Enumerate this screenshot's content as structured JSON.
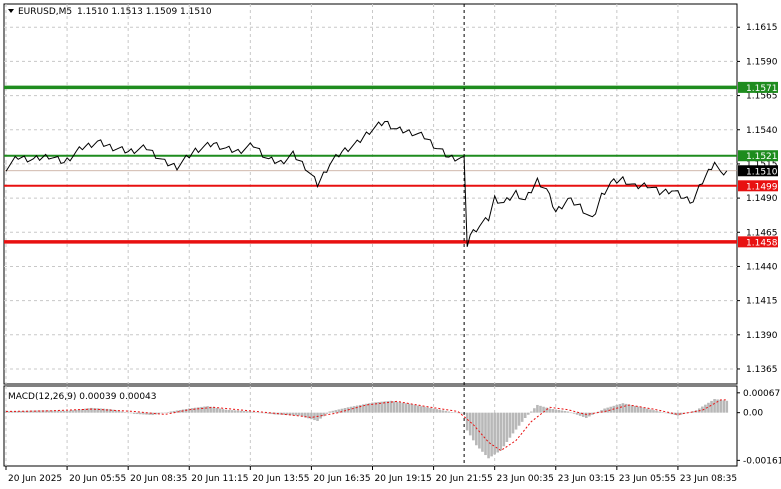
{
  "header": {
    "symbol": "EURUSD,M5",
    "ohlc": "1.1510 1.1513 1.1509 1.1510"
  },
  "macd_header": {
    "label": "MACD(12,26,9) 0.00039 0.00043"
  },
  "chart_data": {
    "type": "line",
    "price_axis": {
      "ylim": [
        1.1354,
        1.1632
      ],
      "ticks": [
        "1.1615",
        "1.1590",
        "1.1565",
        "1.1540",
        "1.1515",
        "1.1490",
        "1.1465",
        "1.1440",
        "1.1415",
        "1.1390",
        "1.1365"
      ]
    },
    "macd_axis": {
      "ylim": [
        -0.0018,
        0.0009
      ],
      "ticks": [
        "0.00067",
        "0.00",
        "-0.00161"
      ]
    },
    "time_axis": {
      "labels": [
        "20 Jun 2025",
        "20 Jun 05:55",
        "20 Jun 08:35",
        "20 Jun 11:15",
        "20 Jun 13:55",
        "20 Jun 16:35",
        "20 Jun 19:15",
        "20 Jun 21:55",
        "23 Jun 00:35",
        "23 Jun 03:15",
        "23 Jun 05:55",
        "23 Jun 08:35"
      ],
      "session_break_index": 150
    },
    "levels": [
      {
        "value": 1.1571,
        "label": "1.1571",
        "color": "#1e8c1e"
      },
      {
        "value": 1.1521,
        "label": "1.1521",
        "color": "#1e8c1e"
      },
      {
        "value": 1.1499,
        "label": "1.1499",
        "color": "#e81010"
      },
      {
        "value": 1.1458,
        "label": "1.1458",
        "color": "#e81010"
      }
    ],
    "current_price": {
      "value": 1.151,
      "label": "1.1510",
      "color": "#000000"
    },
    "price_series": {
      "anchors": [
        [
          0,
          1.1512
        ],
        [
          4,
          1.152
        ],
        [
          9,
          1.1518
        ],
        [
          14,
          1.1521
        ],
        [
          19,
          1.1516
        ],
        [
          25,
          1.1527
        ],
        [
          30,
          1.1531
        ],
        [
          35,
          1.1527
        ],
        [
          40,
          1.1524
        ],
        [
          46,
          1.1527
        ],
        [
          52,
          1.1516
        ],
        [
          56,
          1.1513
        ],
        [
          62,
          1.1525
        ],
        [
          68,
          1.153
        ],
        [
          72,
          1.1526
        ],
        [
          76,
          1.1524
        ],
        [
          81,
          1.1529
        ],
        [
          86,
          1.1518
        ],
        [
          90,
          1.1516
        ],
        [
          94,
          1.1522
        ],
        [
          98,
          1.1513
        ],
        [
          102,
          1.15
        ],
        [
          106,
          1.1515
        ],
        [
          110,
          1.1524
        ],
        [
          115,
          1.153
        ],
        [
          119,
          1.1539
        ],
        [
          124,
          1.1546
        ],
        [
          128,
          1.154
        ],
        [
          133,
          1.1538
        ],
        [
          137,
          1.1535
        ],
        [
          141,
          1.1527
        ],
        [
          145,
          1.152
        ],
        [
          149,
          1.1519
        ],
        [
          150,
          1.1518
        ],
        [
          151,
          1.1456
        ],
        [
          152,
          1.1463
        ],
        [
          155,
          1.147
        ],
        [
          158,
          1.1475
        ],
        [
          160,
          1.149
        ],
        [
          163,
          1.1486
        ],
        [
          167,
          1.1494
        ],
        [
          170,
          1.1488
        ],
        [
          174,
          1.1503
        ],
        [
          177,
          1.1496
        ],
        [
          180,
          1.148
        ],
        [
          184,
          1.1489
        ],
        [
          188,
          1.1484
        ],
        [
          192,
          1.1474
        ],
        [
          195,
          1.1492
        ],
        [
          198,
          1.1501
        ],
        [
          202,
          1.1504
        ],
        [
          206,
          1.1498
        ],
        [
          210,
          1.15
        ],
        [
          214,
          1.1494
        ],
        [
          218,
          1.1496
        ],
        [
          222,
          1.149
        ],
        [
          225,
          1.1488
        ],
        [
          228,
          1.1502
        ],
        [
          232,
          1.1517
        ],
        [
          234,
          1.1507
        ],
        [
          236,
          1.151
        ]
      ]
    },
    "macd_histogram": {
      "anchors": [
        [
          0,
          4e-05
        ],
        [
          12,
          8e-05
        ],
        [
          20,
          6e-05
        ],
        [
          28,
          0.00016
        ],
        [
          34,
          0.00012
        ],
        [
          42,
          -4e-05
        ],
        [
          48,
          -8e-05
        ],
        [
          54,
          4e-05
        ],
        [
          60,
          0.00014
        ],
        [
          66,
          0.00022
        ],
        [
          72,
          0.0001
        ],
        [
          80,
          4e-05
        ],
        [
          88,
          -6e-05
        ],
        [
          96,
          -0.0001
        ],
        [
          102,
          -0.00028
        ],
        [
          106,
          4e-05
        ],
        [
          112,
          0.00018
        ],
        [
          120,
          0.00034
        ],
        [
          126,
          0.0004
        ],
        [
          132,
          0.0003
        ],
        [
          140,
          0.00014
        ],
        [
          146,
          2e-05
        ],
        [
          150,
          -4e-05
        ],
        [
          151,
          -0.0006
        ],
        [
          154,
          -0.0011
        ],
        [
          158,
          -0.00154
        ],
        [
          162,
          -0.00128
        ],
        [
          166,
          -0.0007
        ],
        [
          170,
          -0.00018
        ],
        [
          174,
          0.00026
        ],
        [
          178,
          0.00014
        ],
        [
          184,
          4e-05
        ],
        [
          190,
          -0.00018
        ],
        [
          196,
          0.00014
        ],
        [
          202,
          0.00032
        ],
        [
          208,
          0.00018
        ],
        [
          214,
          4e-05
        ],
        [
          220,
          -0.0001
        ],
        [
          226,
          8e-05
        ],
        [
          232,
          0.00046
        ],
        [
          236,
          0.0004
        ]
      ]
    },
    "macd_signal": {
      "anchors": [
        [
          0,
          4e-05
        ],
        [
          14,
          6e-05
        ],
        [
          28,
          0.00012
        ],
        [
          42,
          4e-05
        ],
        [
          52,
          -6e-05
        ],
        [
          60,
          0.0001
        ],
        [
          68,
          0.00018
        ],
        [
          80,
          6e-05
        ],
        [
          90,
          -4e-05
        ],
        [
          100,
          -0.00016
        ],
        [
          108,
          -2e-05
        ],
        [
          118,
          0.00026
        ],
        [
          128,
          0.00038
        ],
        [
          138,
          0.0002
        ],
        [
          148,
          4e-05
        ],
        [
          153,
          -0.0004
        ],
        [
          158,
          -0.001
        ],
        [
          162,
          -0.00128
        ],
        [
          167,
          -0.00094
        ],
        [
          172,
          -0.0003
        ],
        [
          178,
          0.00018
        ],
        [
          184,
          0.0001
        ],
        [
          190,
          -6e-05
        ],
        [
          196,
          4e-05
        ],
        [
          204,
          0.00026
        ],
        [
          212,
          0.00012
        ],
        [
          220,
          -6e-05
        ],
        [
          228,
          8e-05
        ],
        [
          234,
          0.00043
        ],
        [
          236,
          0.00043
        ]
      ]
    },
    "colors": {
      "price": "#000000",
      "grid": "#c8c8c8",
      "histogram": "#b8b8b8",
      "signal": "#e81010",
      "separator": "#000000"
    }
  }
}
